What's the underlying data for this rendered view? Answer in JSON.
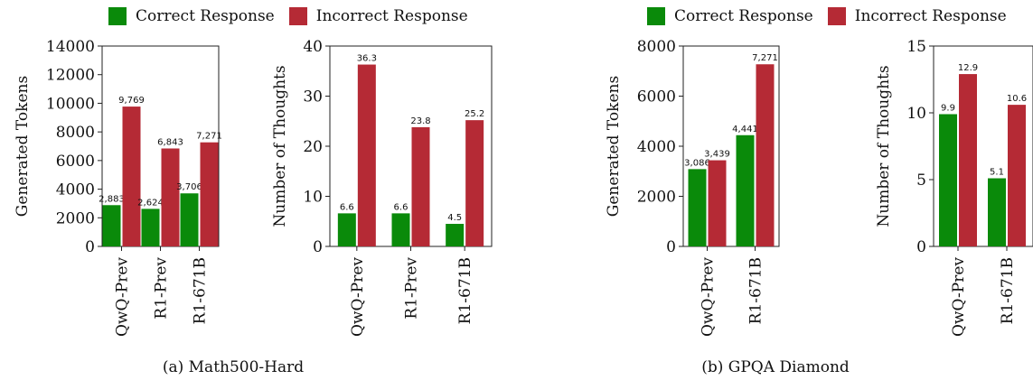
{
  "legend": {
    "correct": "Correct Response",
    "incorrect": "Incorrect Response",
    "correct_color": "#0a8a0a",
    "incorrect_color": "#b52a35"
  },
  "captions": {
    "a": "(a) Math500-Hard",
    "b": "(b) GPQA Diamond"
  },
  "chart_data": [
    {
      "type": "bar",
      "panel": "a",
      "ylabel": "Generated Tokens",
      "categories": [
        "QwQ-Prev",
        "R1-Prev",
        "R1-671B"
      ],
      "ylim": [
        0,
        14000
      ],
      "yticks": [
        0,
        2000,
        4000,
        6000,
        8000,
        10000,
        12000,
        14000
      ],
      "series": [
        {
          "name": "Correct Response",
          "values": [
            2883,
            2624,
            3706
          ],
          "labels": [
            "2,883",
            "2,624",
            "3,706"
          ]
        },
        {
          "name": "Incorrect Response",
          "values": [
            9769,
            6843,
            7271
          ],
          "labels": [
            "9,769",
            "6,843",
            "7,271"
          ]
        }
      ]
    },
    {
      "type": "bar",
      "panel": "a",
      "ylabel": "Number of Thoughts",
      "categories": [
        "QwQ-Prev",
        "R1-Prev",
        "R1-671B"
      ],
      "ylim": [
        0,
        40
      ],
      "yticks": [
        0,
        10,
        20,
        30,
        40
      ],
      "series": [
        {
          "name": "Correct Response",
          "values": [
            6.6,
            6.6,
            4.5
          ],
          "labels": [
            "6.6",
            "6.6",
            "4.5"
          ]
        },
        {
          "name": "Incorrect Response",
          "values": [
            36.3,
            23.8,
            25.2
          ],
          "labels": [
            "36.3",
            "23.8",
            "25.2"
          ]
        }
      ]
    },
    {
      "type": "bar",
      "panel": "b",
      "ylabel": "Generated Tokens",
      "categories": [
        "QwQ-Prev",
        "R1-671B"
      ],
      "ylim": [
        0,
        8000
      ],
      "yticks": [
        0,
        2000,
        4000,
        6000,
        8000
      ],
      "series": [
        {
          "name": "Correct Response",
          "values": [
            3086,
            4441
          ],
          "labels": [
            "3,086",
            "4,441"
          ]
        },
        {
          "name": "Incorrect Response",
          "values": [
            3439,
            7271
          ],
          "labels": [
            "3,439",
            "7,271"
          ]
        }
      ]
    },
    {
      "type": "bar",
      "panel": "b",
      "ylabel": "Number of Thoughts",
      "categories": [
        "QwQ-Prev",
        "R1-671B"
      ],
      "ylim": [
        0,
        15
      ],
      "yticks": [
        0,
        5,
        10,
        15
      ],
      "series": [
        {
          "name": "Correct Response",
          "values": [
            9.9,
            5.1
          ],
          "labels": [
            "9.9",
            "5.1"
          ]
        },
        {
          "name": "Incorrect Response",
          "values": [
            12.9,
            10.6
          ],
          "labels": [
            "12.9",
            "10.6"
          ]
        }
      ]
    }
  ]
}
